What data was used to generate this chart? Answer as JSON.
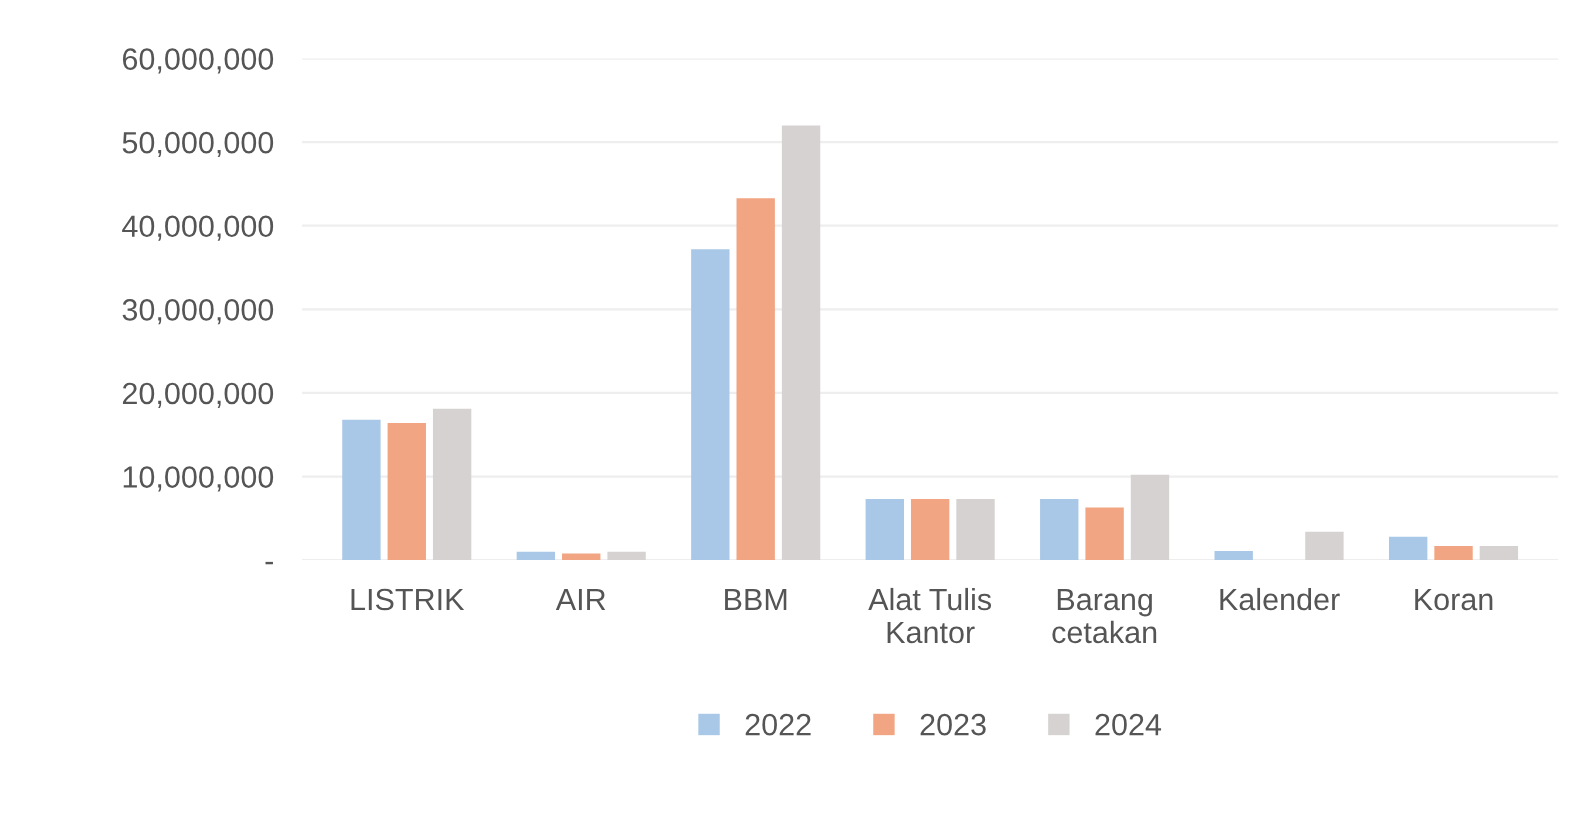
{
  "chart_data": {
    "type": "bar",
    "categories": [
      "LISTRIK",
      "AIR",
      "BBM",
      "Alat Tulis\nKantor",
      "Barang\ncetakan",
      "Kalender",
      "Koran"
    ],
    "series": [
      {
        "name": "2022",
        "color": "#a9c7e6",
        "values": [
          16800000,
          1000000,
          37200000,
          7300000,
          7300000,
          1100000,
          2800000
        ]
      },
      {
        "name": "2023",
        "color": "#f2a582",
        "values": [
          16400000,
          800000,
          43300000,
          7300000,
          6300000,
          null,
          1700000
        ]
      },
      {
        "name": "2024",
        "color": "#d6d2d2",
        "values": [
          18100000,
          1000000,
          52000000,
          7300000,
          10200000,
          3400000,
          1700000
        ]
      }
    ],
    "ylim": [
      0,
      60000000
    ],
    "yticks": [
      {
        "value": 0,
        "label": "-"
      },
      {
        "value": 10000000,
        "label": "10,000,000"
      },
      {
        "value": 20000000,
        "label": "20,000,000"
      },
      {
        "value": 30000000,
        "label": "30,000,000"
      },
      {
        "value": 40000000,
        "label": "40,000,000"
      },
      {
        "value": 50000000,
        "label": "50,000,000"
      },
      {
        "value": 60000000,
        "label": "60,000,000"
      }
    ],
    "grid": "y",
    "legend": "bottom"
  }
}
